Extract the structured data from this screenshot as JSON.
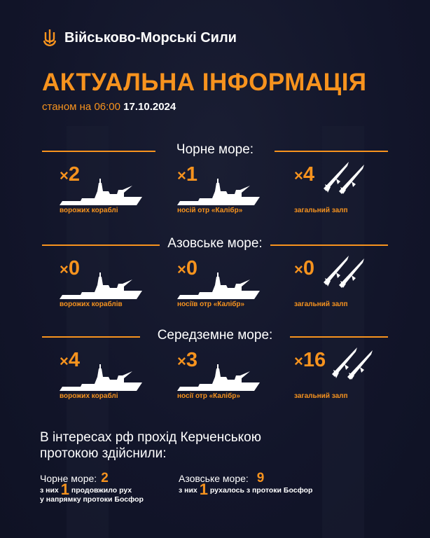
{
  "brand": {
    "name": "Військово-Морські Сили",
    "logo": "trident-anchor-icon"
  },
  "title": "АКТУАЛЬНА ІНФОРМАЦІЯ",
  "subtitle": {
    "prefix": "станом на 06:00",
    "date": "17.10.2024"
  },
  "colors": {
    "accent": "#f7931e",
    "background": "#13162a"
  },
  "sections": [
    {
      "name": "Чорне море:",
      "cells": [
        {
          "count": "2",
          "label": "ворожих кораблі",
          "icon": "ship-icon"
        },
        {
          "count": "1",
          "label": "носій отр «Калібр»",
          "icon": "ship-icon"
        },
        {
          "count": "4",
          "label": "загальний залп",
          "icon": "missile-icon"
        }
      ]
    },
    {
      "name": "Азовське море:",
      "cells": [
        {
          "count": "0",
          "label": "ворожих кораблів",
          "icon": "ship-icon"
        },
        {
          "count": "0",
          "label": "носіїв отр «Калібр»",
          "icon": "ship-icon"
        },
        {
          "count": "0",
          "label": "загальний залп",
          "icon": "missile-icon"
        }
      ]
    },
    {
      "name": "Середземне море:",
      "cells": [
        {
          "count": "4",
          "label": "ворожих кораблі",
          "icon": "ship-icon"
        },
        {
          "count": "3",
          "label": "носії отр «Калібр»",
          "icon": "ship-icon"
        },
        {
          "count": "16",
          "label": "загальний залп",
          "icon": "missile-icon"
        }
      ]
    }
  ],
  "kerch": {
    "heading_line1": "В інтересах рф прохід Керченською",
    "heading_line2": "протокою здійснили:",
    "black": {
      "label": "Чорне море:",
      "count": "2",
      "detail_pre": "з них",
      "detail_num": "1",
      "detail_post": "продовжило рух",
      "detail_line2": "у напрямку протоки Босфор"
    },
    "azov": {
      "label": "Азовське море:",
      "count": "9",
      "detail_pre": "з них",
      "detail_num": "1",
      "detail_post": "рухалось з протоки Босфор"
    }
  },
  "x_sign": "×"
}
